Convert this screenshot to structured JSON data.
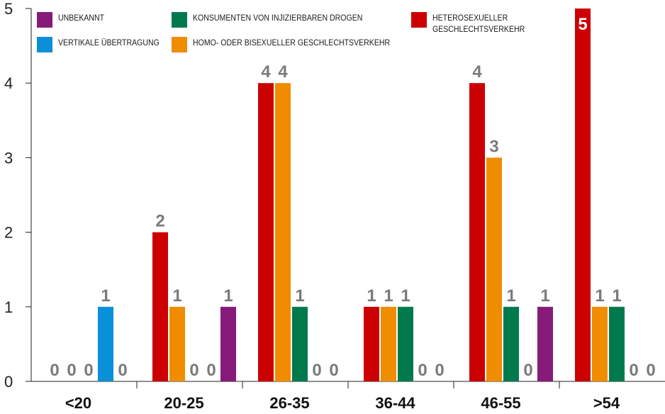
{
  "chart_data": {
    "type": "bar",
    "title": "",
    "xlabel": "",
    "ylabel": "",
    "ylim": [
      0,
      5
    ],
    "yticks": [
      "0",
      "1",
      "2",
      "3",
      "4",
      "5"
    ],
    "categories": [
      "<20",
      "20-25",
      "26-35",
      "36-44",
      "46-55",
      ">54"
    ],
    "grid": false,
    "legend_position": "top",
    "series": [
      {
        "name": "HETEROSEXUELLER GESCHLECHTSVERKEHR",
        "color": "#cc0000",
        "values": [
          0,
          2,
          4,
          1,
          4,
          5
        ]
      },
      {
        "name": "HOMO- ODER BISEXUELLER GESCHLECHTSVERKEHR",
        "color": "#f08c00",
        "values": [
          0,
          1,
          4,
          1,
          3,
          1
        ]
      },
      {
        "name": "KONSUMENTEN VON INJIZIERBAREN DROGEN",
        "color": "#007a4d",
        "values": [
          0,
          0,
          1,
          1,
          1,
          1
        ]
      },
      {
        "name": "VERTIKALE ÜBERTRAGUNG",
        "color": "#0a8fd8",
        "values": [
          1,
          0,
          0,
          0,
          0,
          0
        ]
      },
      {
        "name": "UNBEKANNT",
        "color": "#861b7a",
        "values": [
          0,
          1,
          0,
          0,
          1,
          0
        ]
      }
    ]
  }
}
